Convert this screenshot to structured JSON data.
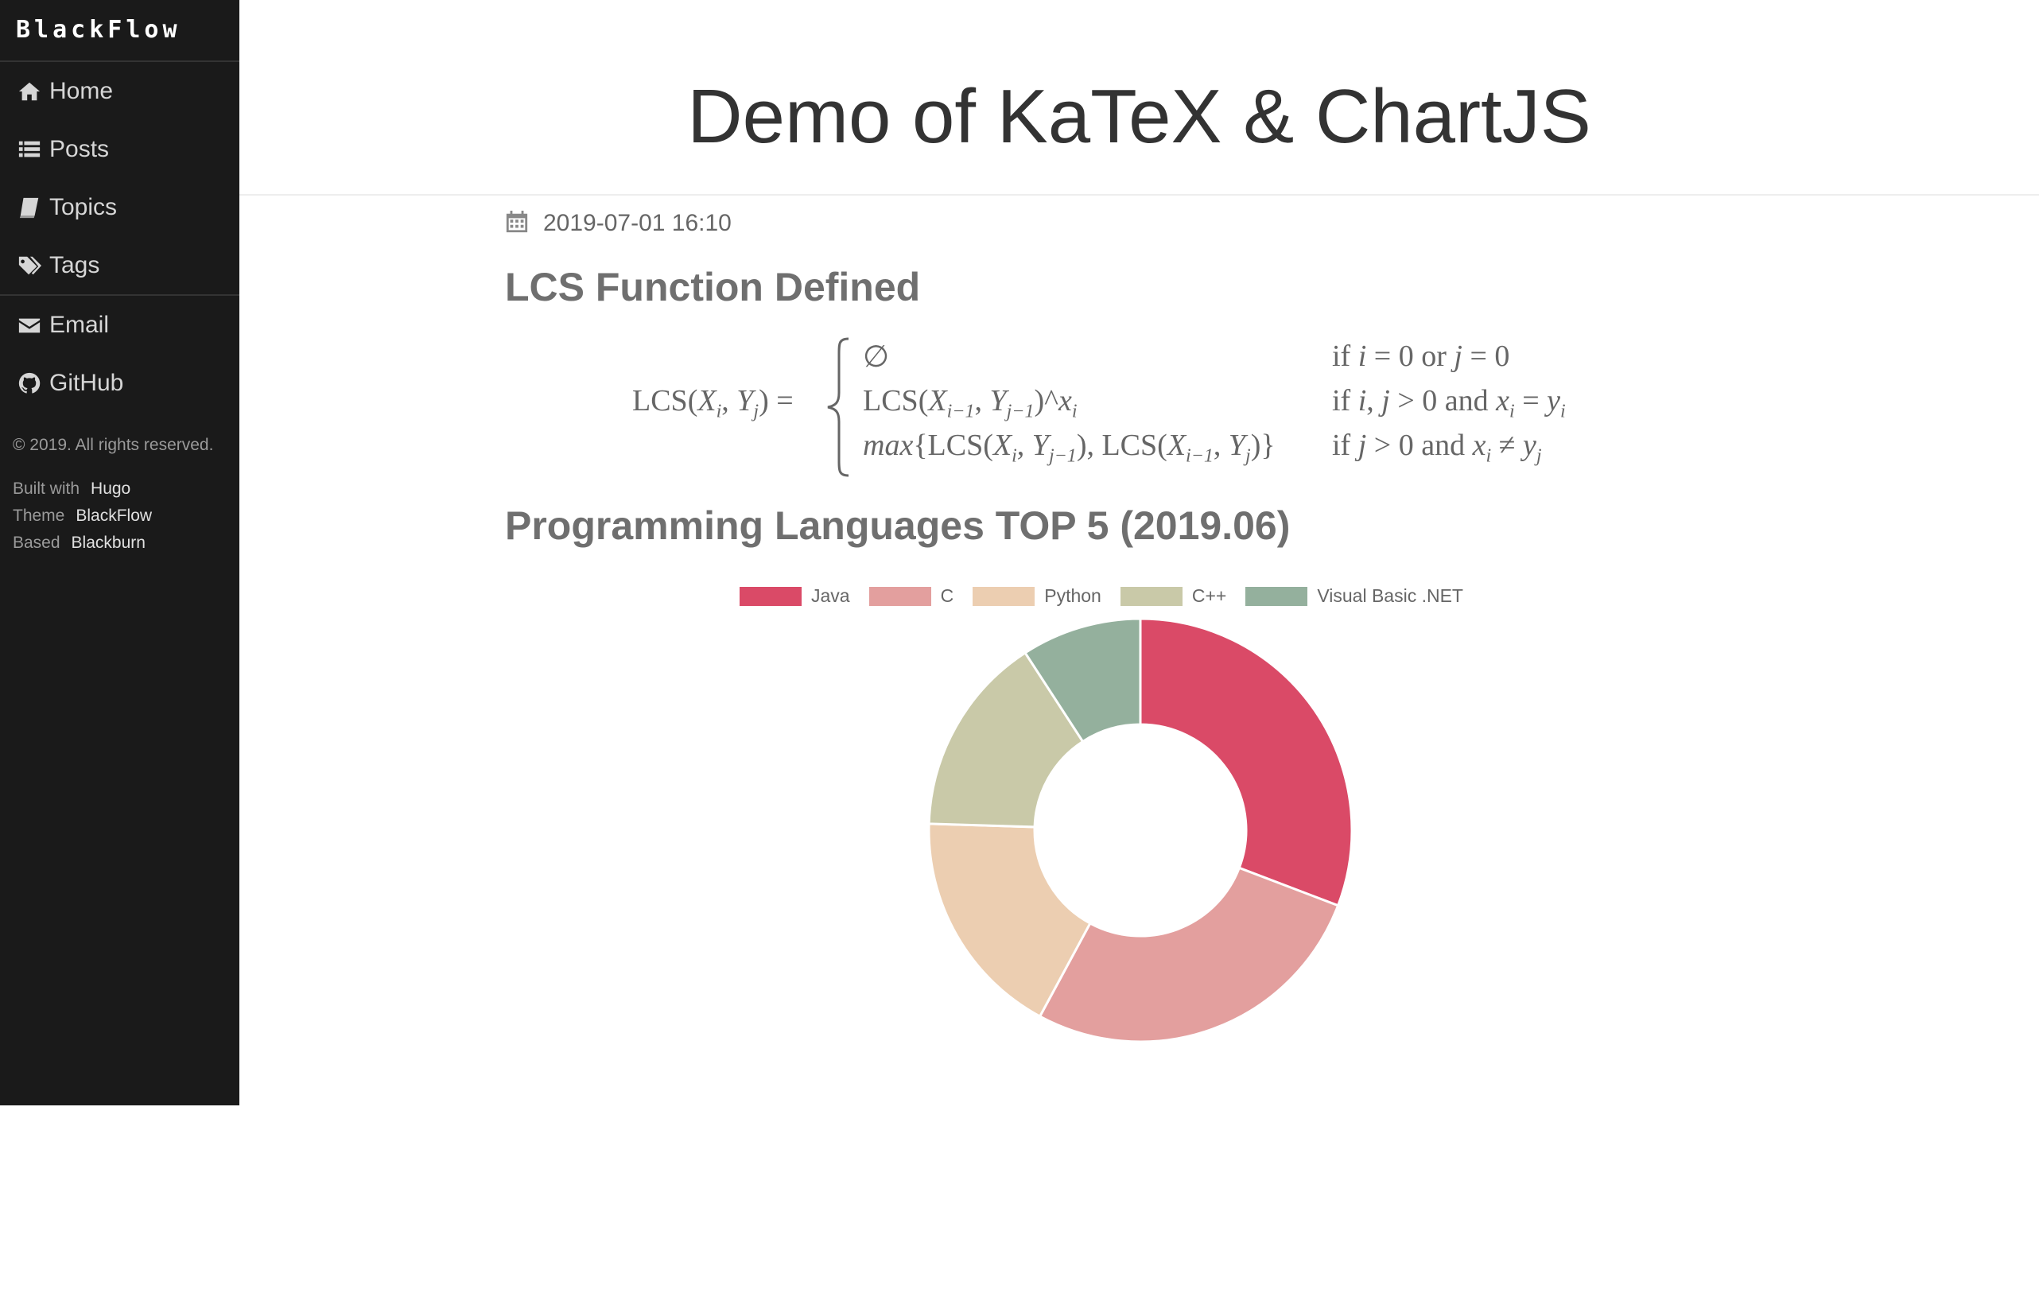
{
  "sidebar": {
    "brand": "BlackFlow",
    "nav": [
      {
        "label": "Home",
        "icon": "home-icon"
      },
      {
        "label": "Posts",
        "icon": "list-icon"
      },
      {
        "label": "Topics",
        "icon": "book-icon"
      },
      {
        "label": "Tags",
        "icon": "tags-icon"
      }
    ],
    "links": [
      {
        "label": "Email",
        "icon": "envelope-icon"
      },
      {
        "label": "GitHub",
        "icon": "github-icon"
      }
    ],
    "copyright": "© 2019. All rights reserved.",
    "built_label": "Built with",
    "built_value": "Hugo",
    "theme_label": "Theme",
    "theme_value": "BlackFlow",
    "based_label": "Based",
    "based_value": "Blackburn"
  },
  "header": {
    "title": "Demo of KaTeX & ChartJS"
  },
  "post": {
    "date": "2019-07-01 16:10",
    "section1_title": "LCS Function Defined",
    "section2_title": "Programming Languages TOP 5 (2019.06)"
  },
  "chart_data": {
    "type": "pie",
    "variant": "doughnut",
    "categories": [
      "Java",
      "C",
      "Python",
      "C++",
      "Visual Basic .NET"
    ],
    "values": [
      29.9,
      26.3,
      17.1,
      14.9,
      8.9
    ],
    "colors": [
      "#da4a67",
      "#e39f9e",
      "#ecceb1",
      "#c9c9a8",
      "#94b09d"
    ],
    "legend_position": "top"
  }
}
